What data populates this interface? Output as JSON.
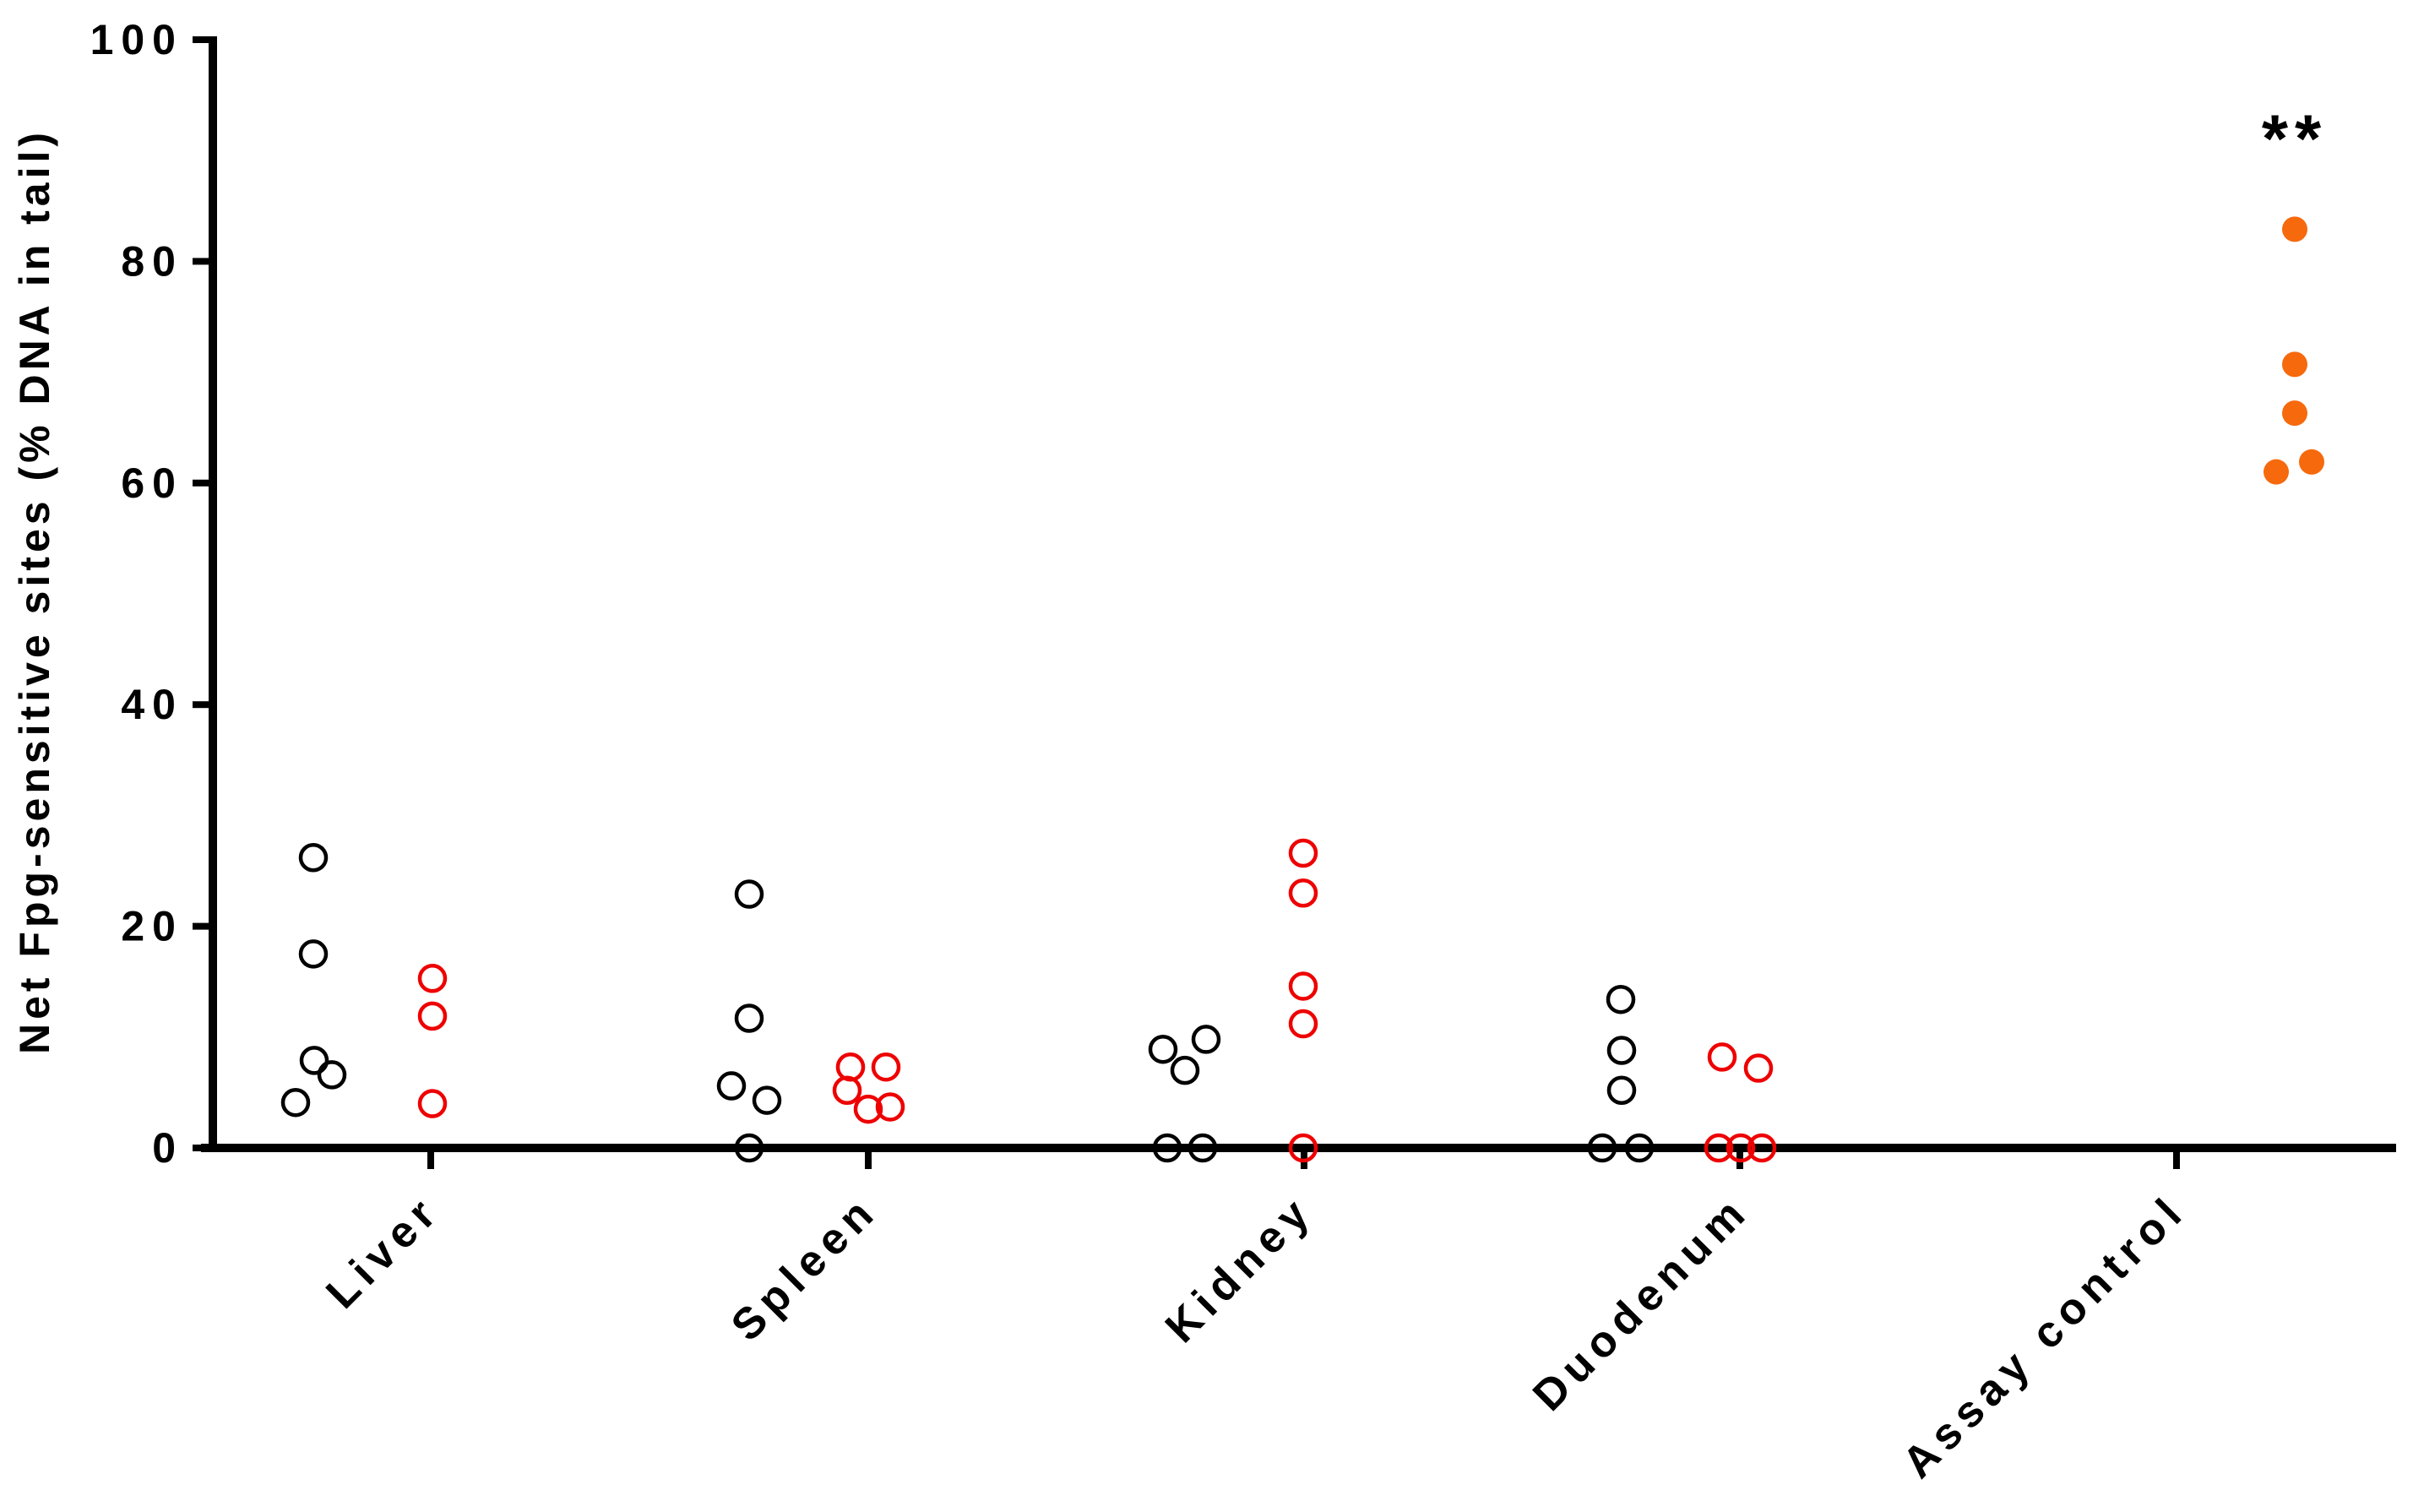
{
  "figure": {
    "background": "#FFFFFF",
    "axis_color": "#000000"
  },
  "chart_data": {
    "type": "scatter",
    "title": "",
    "ylabel": "Net Fpg-sensitive sites (% DNA in tail)",
    "xlabel": "",
    "ylim": [
      0,
      100
    ],
    "yticks": [
      0,
      20,
      40,
      60,
      80,
      100
    ],
    "grid": false,
    "legend": null,
    "categories": [
      "Liver",
      "Spleen",
      "Kidney",
      "Duodenum",
      "Assay control"
    ],
    "series": [
      {
        "name": "black open circles",
        "marker": "open-circle",
        "color": "#000000",
        "points": [
          {
            "category": "Liver",
            "value": 26.2,
            "dx": -139
          },
          {
            "category": "Liver",
            "value": 17.5,
            "dx": -139
          },
          {
            "category": "Liver",
            "value": 7.9,
            "dx": -138
          },
          {
            "category": "Liver",
            "value": 6.6,
            "dx": -117
          },
          {
            "category": "Liver",
            "value": 4.1,
            "dx": -160
          },
          {
            "category": "Spleen",
            "value": 22.9,
            "dx": -141
          },
          {
            "category": "Spleen",
            "value": 11.7,
            "dx": -141
          },
          {
            "category": "Spleen",
            "value": 5.6,
            "dx": -162
          },
          {
            "category": "Spleen",
            "value": 4.3,
            "dx": -120
          },
          {
            "category": "Spleen",
            "value": 0,
            "dx": -141
          },
          {
            "category": "Kidney",
            "value": 9.8,
            "dx": -116
          },
          {
            "category": "Kidney",
            "value": 8.9,
            "dx": -167
          },
          {
            "category": "Kidney",
            "value": 7.0,
            "dx": -141
          },
          {
            "category": "Kidney",
            "value": 0,
            "dx": -162
          },
          {
            "category": "Kidney",
            "value": 0,
            "dx": -120
          },
          {
            "category": "Duodenum",
            "value": 13.4,
            "dx": -141
          },
          {
            "category": "Duodenum",
            "value": 8.8,
            "dx": -140
          },
          {
            "category": "Duodenum",
            "value": 5.2,
            "dx": -140
          },
          {
            "category": "Duodenum",
            "value": 0,
            "dx": -163
          },
          {
            "category": "Duodenum",
            "value": 0,
            "dx": -119
          }
        ]
      },
      {
        "name": "red open circles",
        "marker": "open-circle",
        "color": "#EE0000",
        "points": [
          {
            "category": "Liver",
            "value": 15.3,
            "dx": 2
          },
          {
            "category": "Liver",
            "value": 11.9,
            "dx": 2
          },
          {
            "category": "Liver",
            "value": 4.0,
            "dx": 2
          },
          {
            "category": "Spleen",
            "value": 7.3,
            "dx": -21
          },
          {
            "category": "Spleen",
            "value": 7.3,
            "dx": 21
          },
          {
            "category": "Spleen",
            "value": 5.2,
            "dx": -25
          },
          {
            "category": "Spleen",
            "value": 3.5,
            "dx": 0
          },
          {
            "category": "Spleen",
            "value": 3.7,
            "dx": 26
          },
          {
            "category": "Kidney",
            "value": 26.6,
            "dx": -1
          },
          {
            "category": "Kidney",
            "value": 23.0,
            "dx": -1
          },
          {
            "category": "Kidney",
            "value": 14.6,
            "dx": -1
          },
          {
            "category": "Kidney",
            "value": 11.2,
            "dx": -1
          },
          {
            "category": "Kidney",
            "value": 0,
            "dx": -1
          },
          {
            "category": "Duodenum",
            "value": 8.2,
            "dx": -21
          },
          {
            "category": "Duodenum",
            "value": 7.2,
            "dx": 22
          },
          {
            "category": "Duodenum",
            "value": 0,
            "dx": -25
          },
          {
            "category": "Duodenum",
            "value": 0,
            "dx": 1
          },
          {
            "category": "Duodenum",
            "value": 0,
            "dx": 26
          }
        ]
      },
      {
        "name": "orange filled circles",
        "marker": "filled-circle",
        "color": "#F6690C",
        "points": [
          {
            "category": "Assay control",
            "value": 82.9,
            "dx": 140
          },
          {
            "category": "Assay control",
            "value": 70.7,
            "dx": 140
          },
          {
            "category": "Assay control",
            "value": 66.3,
            "dx": 140
          },
          {
            "category": "Assay control",
            "value": 61.0,
            "dx": 118
          },
          {
            "category": "Assay control",
            "value": 61.9,
            "dx": 160
          }
        ]
      }
    ],
    "annotations": [
      {
        "text": "**",
        "category": "Assay control",
        "dx": 140,
        "y": 89
      }
    ]
  }
}
